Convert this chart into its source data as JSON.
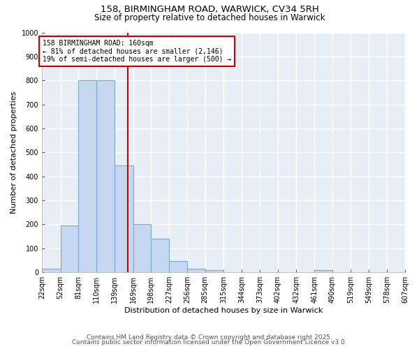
{
  "title1": "158, BIRMINGHAM ROAD, WARWICK, CV34 5RH",
  "title2": "Size of property relative to detached houses in Warwick",
  "xlabel": "Distribution of detached houses by size in Warwick",
  "ylabel": "Number of detached properties",
  "bin_edges": [
    22,
    52,
    81,
    110,
    139,
    169,
    198,
    227,
    256,
    285,
    315,
    344,
    373,
    402,
    432,
    461,
    490,
    519,
    549,
    578,
    607
  ],
  "bar_heights": [
    15,
    195,
    800,
    800,
    445,
    200,
    140,
    47,
    15,
    10,
    0,
    0,
    0,
    0,
    0,
    8,
    0,
    0,
    0,
    0
  ],
  "bar_color": "#c5d8ef",
  "bar_edgecolor": "#7aabcf",
  "vline_x": 160,
  "vline_color": "#cc0000",
  "annotation_text": "158 BIRMINGHAM ROAD: 160sqm\n← 81% of detached houses are smaller (2,146)\n19% of semi-detached houses are larger (500) →",
  "annotation_box_color": "#cc0000",
  "ylim": [
    0,
    1000
  ],
  "yticks": [
    0,
    100,
    200,
    300,
    400,
    500,
    600,
    700,
    800,
    900,
    1000
  ],
  "footer_line1": "Contains HM Land Registry data © Crown copyright and database right 2025.",
  "footer_line2": "Contains public sector information licensed under the Open Government Licence v3.0.",
  "bg_color": "#e8eef5",
  "grid_color": "#ffffff",
  "title_fontsize": 9.5,
  "subtitle_fontsize": 8.5,
  "xlabel_fontsize": 8,
  "ylabel_fontsize": 8,
  "tick_fontsize": 7,
  "annot_fontsize": 7,
  "footer_fontsize": 6.5
}
